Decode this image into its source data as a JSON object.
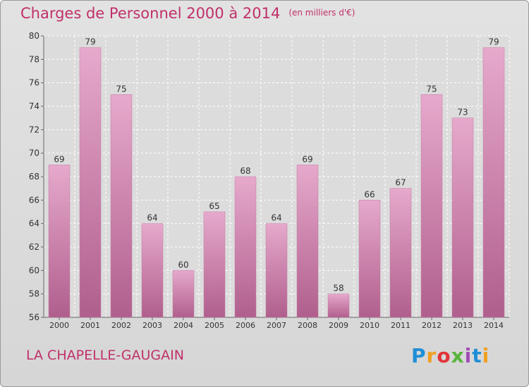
{
  "chart_data": {
    "type": "bar",
    "title": "Charges de Personnel 2000 à 2014",
    "subtitle": "(en milliers d'€)",
    "categories": [
      "2000",
      "2001",
      "2002",
      "2003",
      "2004",
      "2005",
      "2006",
      "2007",
      "2008",
      "2009",
      "2010",
      "2011",
      "2012",
      "2013",
      "2014"
    ],
    "values": [
      69,
      79,
      75,
      64,
      60,
      65,
      68,
      64,
      69,
      58,
      66,
      67,
      75,
      73,
      79
    ],
    "ylim": [
      56,
      80
    ],
    "yticks": [
      56,
      58,
      60,
      62,
      64,
      66,
      68,
      70,
      72,
      74,
      76,
      78,
      80
    ],
    "grid": true,
    "bar_color": "#d07aa8"
  },
  "footer": {
    "commune": "LA CHAPELLE-GAUGAIN",
    "logo_letters": [
      "P",
      "r",
      "o",
      "x",
      "i",
      "t",
      "i"
    ]
  }
}
